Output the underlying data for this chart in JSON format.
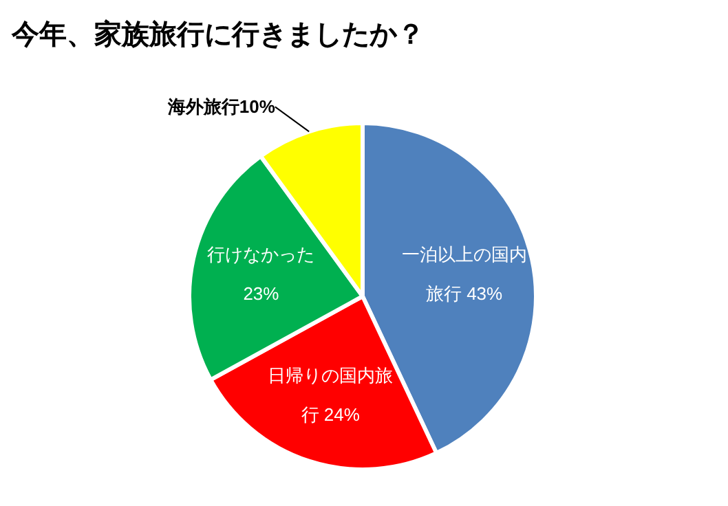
{
  "chart_data": {
    "type": "pie",
    "title": "今年、家族旅行に行きましたか？",
    "categories": [
      "一泊以上の国内旅行",
      "日帰りの国内旅行",
      "行けなかった",
      "海外旅行"
    ],
    "values": [
      43,
      24,
      23,
      10
    ],
    "colors": [
      "#4f81bd",
      "#ff0000",
      "#00b050",
      "#ffff00"
    ],
    "value_labels": [
      "43%",
      "24%",
      "23%",
      "10%"
    ]
  }
}
